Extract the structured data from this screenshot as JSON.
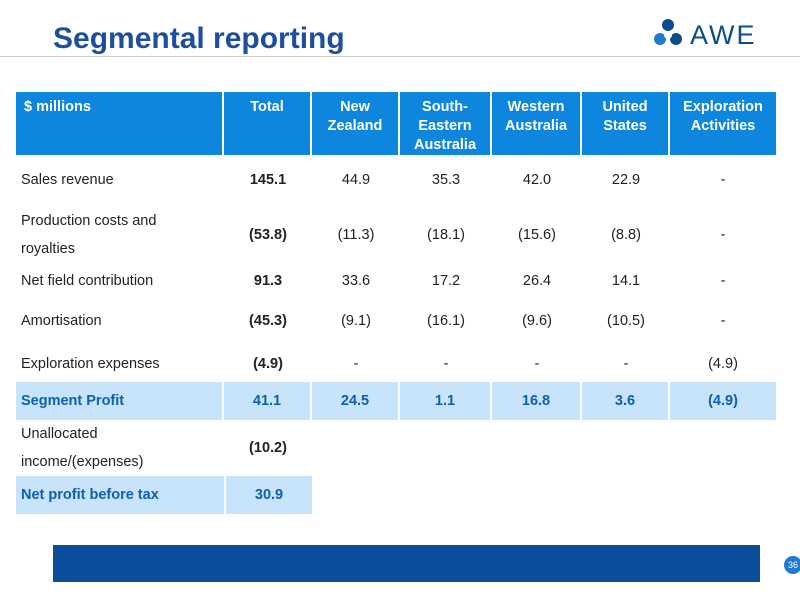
{
  "title": "Segmental reporting",
  "logo": {
    "text": "AWE",
    "color": "#0B4E8C"
  },
  "colors": {
    "title": "#1E4F9E",
    "header_bg": "#0F86DE",
    "highlight_bg": "#C7E4FA",
    "highlight_text": "#0F5FB0",
    "footer_bar": "#0B4E9C"
  },
  "table": {
    "headers": [
      [
        "$ millions"
      ],
      [
        "Total"
      ],
      [
        "New",
        "Zealand"
      ],
      [
        "South-",
        "Eastern",
        "Australia"
      ],
      [
        "Western",
        "Australia"
      ],
      [
        "United",
        "States"
      ],
      [
        "Exploration",
        "Activities"
      ]
    ],
    "rows": [
      {
        "label": [
          "Sales revenue"
        ],
        "values": [
          "145.1",
          "44.9",
          "35.3",
          "42.0",
          "22.9",
          "-"
        ]
      },
      {
        "label": [
          "Production costs and",
          "royalties"
        ],
        "values": [
          "(53.8)",
          "(11.3)",
          "(18.1)",
          "(15.6)",
          "(8.8)",
          "-"
        ]
      },
      {
        "label": [
          "Net field contribution"
        ],
        "values": [
          "91.3",
          "33.6",
          "17.2",
          "26.4",
          "14.1",
          "-"
        ]
      },
      {
        "label": [
          "Amortisation"
        ],
        "values": [
          "(45.3)",
          "(9.1)",
          "(16.1)",
          "(9.6)",
          "(10.5)",
          "-"
        ]
      },
      {
        "label": [
          "Exploration expenses"
        ],
        "values": [
          "(4.9)",
          "-",
          "-",
          "-",
          "-",
          "(4.9)"
        ]
      }
    ],
    "segment_profit": {
      "label": "Segment Profit",
      "values": [
        "41.1",
        "24.5",
        "1.1",
        "16.8",
        "3.6",
        "(4.9)"
      ]
    },
    "unallocated": {
      "label": [
        "Unallocated",
        "income/(expenses)"
      ],
      "value": "(10.2)"
    },
    "net_profit": {
      "label": "Net profit before tax",
      "value": "30.9"
    }
  },
  "page_number": "36"
}
